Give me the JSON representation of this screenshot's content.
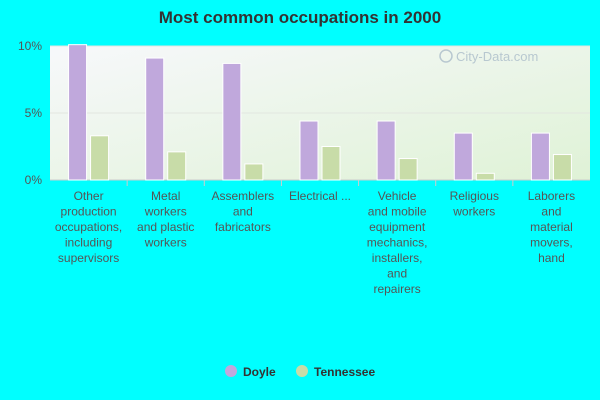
{
  "chart_data": {
    "type": "bar",
    "title": "Most common occupations in 2000",
    "categories": [
      [
        "Other",
        "production",
        "occupations,",
        "including",
        "supervisors"
      ],
      [
        "Metal",
        "workers",
        "and plastic",
        "workers"
      ],
      [
        "Assemblers",
        "and",
        "fabricators"
      ],
      [
        "Electrical ..."
      ],
      [
        "Vehicle",
        "and mobile",
        "equipment",
        "mechanics,",
        "installers,",
        "and",
        "repairers"
      ],
      [
        "Religious",
        "workers"
      ],
      [
        "Laborers",
        "and",
        "material",
        "movers,",
        "hand"
      ]
    ],
    "series": [
      {
        "name": "Doyle",
        "color": "#c0a8dc",
        "values": [
          10.1,
          9.1,
          8.7,
          4.4,
          4.4,
          3.5,
          3.5
        ]
      },
      {
        "name": "Tennessee",
        "color": "#c8dca8",
        "values": [
          3.3,
          2.1,
          1.2,
          2.5,
          1.6,
          0.5,
          1.9
        ]
      }
    ],
    "yticks": [
      "0%",
      "5%",
      "10%"
    ],
    "ytick_values": [
      0,
      5,
      10
    ],
    "ylim": [
      0,
      10
    ],
    "grid": true,
    "legend": "bottom-center"
  },
  "watermark": "City-Data.com"
}
